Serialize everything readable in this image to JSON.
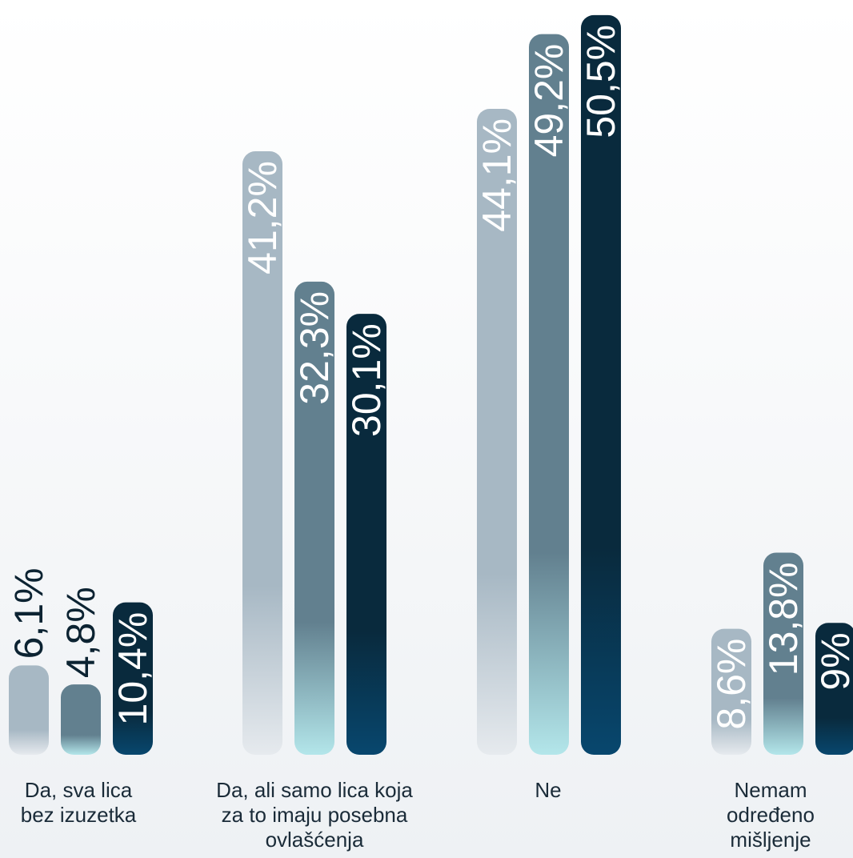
{
  "chart_data": {
    "type": "bar",
    "categories": [
      "Da, sva lica bez izuzetka",
      "Da, ali samo lica koja za to imaju posebna ovlašćenja",
      "Ne",
      "Nemam određeno mišljenje"
    ],
    "series": [
      {
        "values": [
          6.1,
          41.2,
          44.1,
          8.6
        ],
        "labels": [
          "6,1%",
          "41,2%",
          "44,1%",
          "8,6%"
        ],
        "color_top": "#a7b8c4",
        "color_bottom": "#e6eaee",
        "text_color": "#ffffff"
      },
      {
        "values": [
          4.8,
          32.3,
          49.2,
          13.8
        ],
        "labels": [
          "4,8%",
          "32,3%",
          "49,2%",
          "13,8%"
        ],
        "color_top": "#62808f",
        "color_bottom": "#b3e6ea",
        "text_color": "#ffffff"
      },
      {
        "values": [
          10.4,
          30.1,
          50.5,
          9.0
        ],
        "labels": [
          "10,4%",
          "30,1%",
          "50,5%",
          "9%"
        ],
        "color_top": "#092a3d",
        "color_bottom": "#08476e",
        "text_color": "#ffffff"
      }
    ],
    "ylim": [
      0,
      52
    ],
    "grid": false,
    "legend": "none",
    "outside_label_color": "#0c2332"
  },
  "labels": {
    "cat1_line1": "Da, sva lica",
    "cat1_line2": "bez izuzetka",
    "cat2_line1": "Da, ali samo lica koja",
    "cat2_line2": "za to imaju posebna",
    "cat2_line3": "ovlašćenja",
    "cat3_line1": "Ne",
    "cat4_line1": "Nemam",
    "cat4_line2": "određeno",
    "cat4_line3": "mišljenje"
  }
}
